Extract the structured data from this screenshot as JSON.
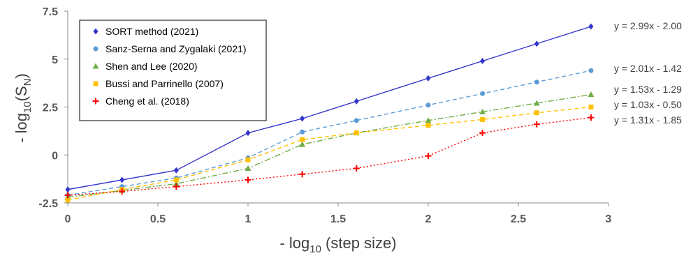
{
  "chart_data": {
    "type": "line",
    "xlabel": {
      "main": "- log",
      "sub": "10",
      "tail": " (step size)"
    },
    "ylabel": {
      "main": "- log",
      "sub": "10",
      "mid": "(S",
      "sub2": "N",
      "tail": ")"
    },
    "xlim": [
      0,
      3
    ],
    "ylim": [
      -2.5,
      7.5
    ],
    "x_ticks": [
      0,
      0.5,
      1,
      1.5,
      2,
      2.5,
      3
    ],
    "x_tick_labels": [
      "0",
      "0.5",
      "1",
      "1.5",
      "2",
      "2.5",
      "3"
    ],
    "y_ticks": [
      -2.5,
      0,
      2.5,
      5,
      7.5
    ],
    "y_tick_labels": [
      "-2.5",
      "0",
      "2.5",
      "5",
      "7.5"
    ],
    "grid": false,
    "legend_position": "top-left",
    "series": [
      {
        "name": "SORT method (2021)",
        "color": "#3333cc",
        "marker": "diamond",
        "dash": "solid",
        "x": [
          0,
          0.301,
          0.602,
          1,
          1.301,
          1.602,
          2,
          2.301,
          2.602,
          2.903
        ],
        "y": [
          -1.8,
          -1.3,
          -0.8,
          1.15,
          1.9,
          2.8,
          4.0,
          4.9,
          5.8,
          6.7
        ],
        "fit": "y = 2.99x - 2.00"
      },
      {
        "name": "Sanz-Serna and Zygalaki (2021)",
        "color": "#5b9bd5",
        "marker": "circle",
        "dash": "dashed",
        "x": [
          0,
          0.301,
          0.602,
          1,
          1.301,
          1.602,
          2,
          2.301,
          2.602,
          2.903
        ],
        "y": [
          -2.1,
          -1.65,
          -1.2,
          -0.15,
          1.2,
          1.8,
          2.6,
          3.2,
          3.8,
          4.4
        ],
        "fit": "y = 2.01x - 1.42"
      },
      {
        "name": "Shen and Lee (2020)",
        "color": "#70ad47",
        "marker": "triangle",
        "dash": "dashdot",
        "x": [
          0,
          0.301,
          0.602,
          1,
          1.301,
          1.602,
          2,
          2.301,
          2.602,
          2.903
        ],
        "y": [
          -2.2,
          -1.85,
          -1.5,
          -0.7,
          0.55,
          1.15,
          1.8,
          2.25,
          2.7,
          3.15
        ],
        "fit": "y = 1.53x - 1.29"
      },
      {
        "name": "Bussi and Parrinello (2007)",
        "color": "#ffc000",
        "marker": "square",
        "dash": "dashed",
        "x": [
          0,
          0.301,
          0.602,
          1,
          1.301,
          1.602,
          2,
          2.301,
          2.602,
          2.903
        ],
        "y": [
          -2.35,
          -1.8,
          -1.3,
          -0.25,
          0.8,
          1.15,
          1.55,
          1.85,
          2.2,
          2.5
        ],
        "fit": "y = 1.03x - 0.50"
      },
      {
        "name": "Cheng et al. (2018)",
        "color": "#ff0000",
        "marker": "plus",
        "dash": "dotted",
        "x": [
          0,
          0.301,
          0.602,
          1,
          1.301,
          1.602,
          2,
          2.301,
          2.602,
          2.903
        ],
        "y": [
          -2.1,
          -1.9,
          -1.65,
          -1.3,
          -1.0,
          -0.7,
          -0.05,
          1.15,
          1.6,
          1.95
        ],
        "fit": "y = 1.31x - 1.85"
      }
    ]
  }
}
